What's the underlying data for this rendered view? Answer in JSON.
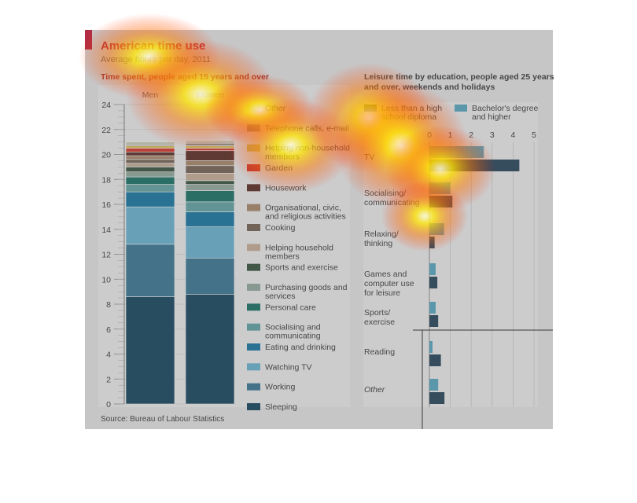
{
  "chart_data": [
    {
      "type": "bar",
      "stacked": true,
      "title": "American time use",
      "subtitle": "Average hours per day, 2011",
      "panel_title": "Time spent, people aged 15 years and over",
      "categories": [
        "Men",
        "Women"
      ],
      "ylim": [
        0,
        24
      ],
      "yticks": [
        "0",
        "2",
        "4",
        "6",
        "8",
        "10",
        "12",
        "14",
        "16",
        "18",
        "20",
        "22",
        "24"
      ],
      "grid": true,
      "legend_position": "right",
      "series": [
        {
          "name": "Sleeping",
          "color": "#0b3c57",
          "values": [
            8.6,
            8.8
          ]
        },
        {
          "name": "Working",
          "color": "#2f6f8f",
          "values": [
            4.2,
            2.9
          ]
        },
        {
          "name": "Watching TV",
          "color": "#62afd0",
          "values": [
            3.0,
            2.5
          ]
        },
        {
          "name": "Eating and drinking",
          "color": "#0a6f9e",
          "values": [
            1.2,
            1.2
          ]
        },
        {
          "name": "Socialising and communicating",
          "color": "#5a9ea0",
          "values": [
            0.6,
            0.8
          ]
        },
        {
          "name": "Personal care",
          "color": "#0d6a5f",
          "values": [
            0.6,
            0.9
          ]
        },
        {
          "name": "Purchasing goods and services",
          "color": "#8ea69b",
          "values": [
            0.4,
            0.5
          ]
        },
        {
          "name": "Sports and exercise",
          "color": "#2e4a37",
          "values": [
            0.4,
            0.3
          ]
        },
        {
          "name": "Helping household members",
          "color": "#c4aa93",
          "values": [
            0.3,
            0.6
          ]
        },
        {
          "name": "Cooking",
          "color": "#6f5a4d",
          "values": [
            0.3,
            0.6
          ]
        },
        {
          "name": "Organisational, civic, and religious activities",
          "color": "#a38264",
          "values": [
            0.3,
            0.4
          ]
        },
        {
          "name": "Housework",
          "color": "#55201a",
          "values": [
            0.3,
            0.8
          ]
        },
        {
          "name": "Garden",
          "color": "#d42a1d",
          "values": [
            0.3,
            0.2
          ]
        },
        {
          "name": "Helping non-household members",
          "color": "#d9b94c",
          "values": [
            0.2,
            0.2
          ]
        },
        {
          "name": "Telephone calls, e-mail",
          "color": "#8f8b86",
          "values": [
            0.1,
            0.2
          ]
        },
        {
          "name": "Other",
          "color": "#c8c8b4",
          "values": [
            0.2,
            0.2
          ]
        }
      ],
      "legend": [
        {
          "label": "Other",
          "italic": true,
          "color": "#c8c8b4"
        },
        {
          "label": "Telephone calls, e-mail",
          "color": "#8f8b86"
        },
        {
          "label": "Helping non-household members",
          "color": "#d9b94c"
        },
        {
          "label": "Garden",
          "color": "#d42a1d"
        },
        {
          "label": "Housework",
          "color": "#55201a"
        },
        {
          "label": "Organisational, civic, and religious activities",
          "color": "#a38264"
        },
        {
          "label": "Cooking",
          "color": "#6f5a4d"
        },
        {
          "label": "Helping household members",
          "color": "#c4aa93"
        },
        {
          "label": "Sports and exercise",
          "color": "#2e4a37"
        },
        {
          "label": "Purchasing goods and services",
          "color": "#8ea69b"
        },
        {
          "label": "Personal care",
          "color": "#0d6a5f"
        },
        {
          "label": "Socialising and communicating",
          "color": "#5a9ea0"
        },
        {
          "label": "Eating and drinking",
          "color": "#0a6f9e"
        },
        {
          "label": "Watching TV",
          "color": "#62afd0"
        },
        {
          "label": "Working",
          "color": "#2f6f8f"
        },
        {
          "label": "Sleeping",
          "color": "#0b3c57"
        }
      ],
      "source": "Source: Bureau of Labour Statistics"
    },
    {
      "type": "bar",
      "orientation": "horizontal",
      "title": "Leisure time by education, people aged 25 years and over, weekends and holidays",
      "xlim": [
        0,
        5
      ],
      "xticks": [
        "0",
        "1",
        "2",
        "3",
        "4",
        "5"
      ],
      "grid": true,
      "legend_position": "top",
      "categories": [
        "TV",
        "Socialising/ communicating",
        "Relaxing/ thinking",
        "Games and computer use for leisure",
        "Sports/ exercise",
        "Reading",
        "Other"
      ],
      "series": [
        {
          "name": "Less than a high school diploma",
          "color": "#1d3c52",
          "values": [
            4.3,
            1.1,
            0.25,
            0.38,
            0.42,
            0.55,
            0.72
          ]
        },
        {
          "name": "Bachelor's degree and higher",
          "color": "#4fa2bd",
          "values": [
            2.6,
            1.0,
            0.7,
            0.3,
            0.3,
            0.15,
            0.42
          ]
        }
      ]
    }
  ],
  "colors": {
    "brand_red": "#c8102e",
    "title": "#c8102e",
    "panel_title": "#a8201a",
    "panel_bg": "#e7e7e7",
    "text": "#333333"
  },
  "overlay": "attention heatmap"
}
